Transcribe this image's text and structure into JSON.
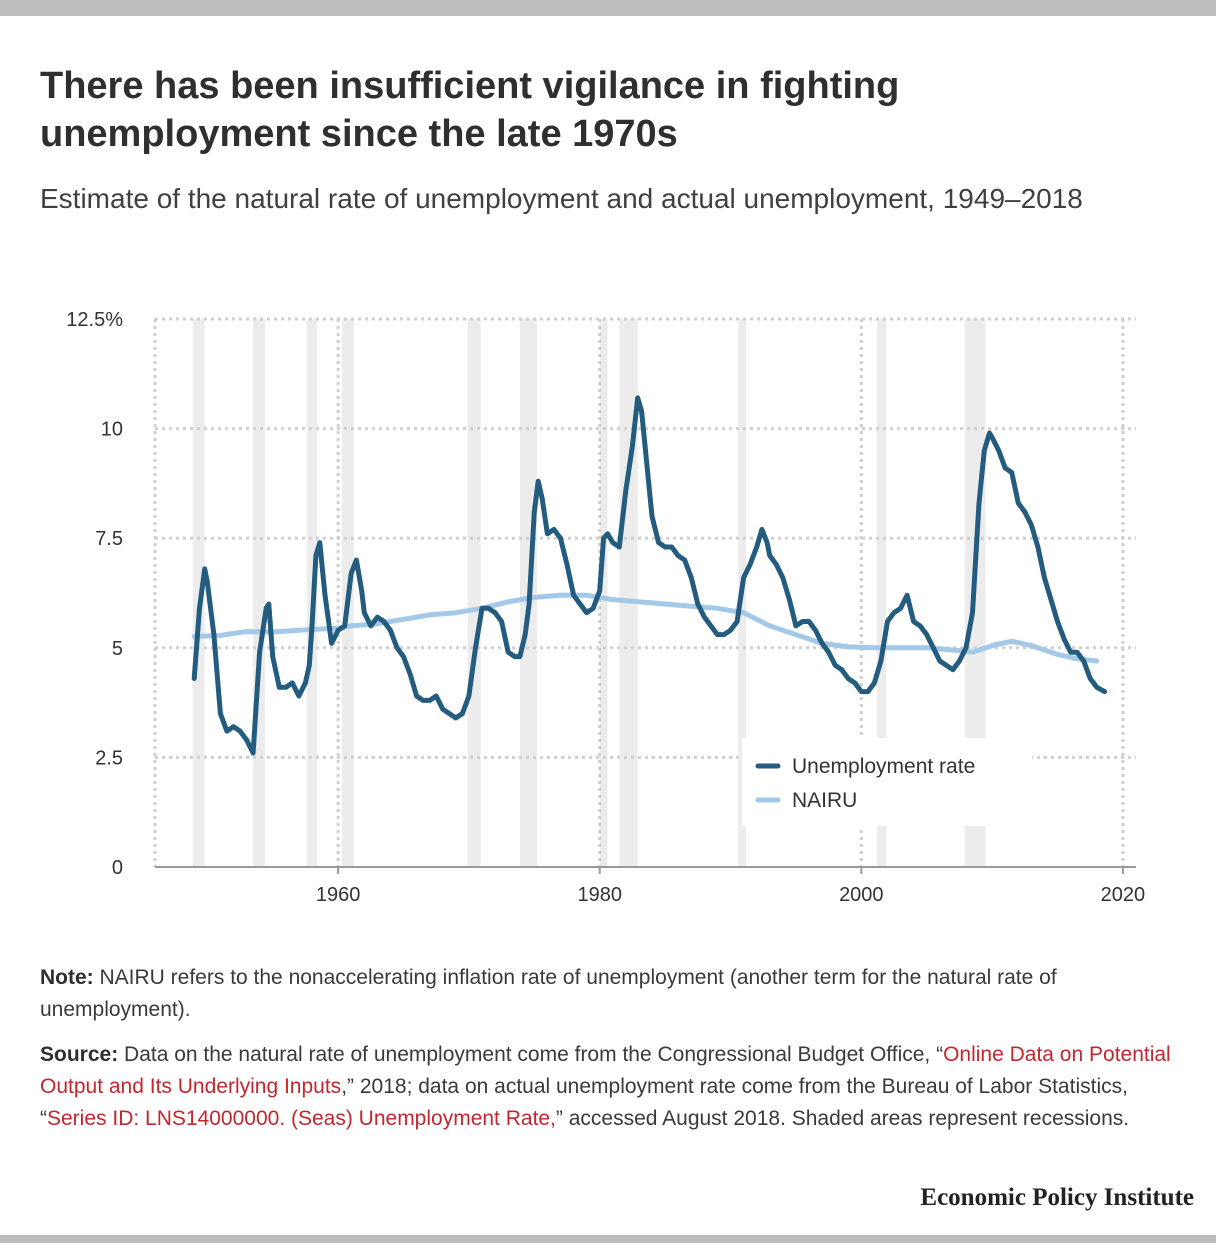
{
  "header": {
    "title": "There has been insufficient vigilance in fighting unemployment since the late 1970s",
    "subtitle": "Estimate of the natural rate of unemployment and actual unemployment, 1949–2018"
  },
  "footer": {
    "note_label": "Note:",
    "note_text": " NAIRU refers to the nonaccelerating inflation rate of unemployment (another term for the natural rate of unemployment).",
    "source_label": "Source:",
    "source_pre": " Data on the natural rate of unemployment come from the Congressional Budget Office, “",
    "source_link1": "Online Data on Potential Output and Its Underlying Inputs",
    "source_mid": ",” 2018; data on actual unemployment rate come from the Bureau of Labor Statistics, “",
    "source_link2": "Series ID: LNS14000000. (Seas) Unemployment Rate,",
    "source_post": "” accessed August 2018. Shaded areas represent recessions.",
    "brand": "Economic Policy Institute"
  },
  "colors": {
    "unemployment": "#245c80",
    "nairu": "#a3c8e8",
    "recession": "#ececec",
    "grid": "#d0d0d0",
    "axis": "#9a9a9a",
    "link": "#c1272d"
  },
  "chart_data": {
    "type": "line",
    "x_axis": {
      "range": [
        1946,
        2021
      ],
      "ticks": [
        1960,
        1980,
        2000,
        2020
      ],
      "tick_labels": [
        "1960",
        "1980",
        "2000",
        "2020"
      ]
    },
    "y_axis": {
      "range": [
        0,
        12.5
      ],
      "ticks": [
        0,
        2.5,
        5,
        7.5,
        10,
        12.5
      ],
      "tick_labels": [
        "0",
        "2.5",
        "5",
        "7.5",
        "10",
        "12.5%"
      ]
    },
    "grid": true,
    "legend": {
      "placement": "bottom-right",
      "entries": [
        "Unemployment rate",
        "NAIRU"
      ]
    },
    "recessions": [
      [
        1948.9,
        1949.8
      ],
      [
        1953.5,
        1954.4
      ],
      [
        1957.6,
        1958.4
      ],
      [
        1960.3,
        1961.2
      ],
      [
        1969.9,
        1970.9
      ],
      [
        1973.9,
        1975.2
      ],
      [
        1980.0,
        1980.6
      ],
      [
        1981.5,
        1982.9
      ],
      [
        1990.6,
        1991.2
      ],
      [
        2001.2,
        2001.9
      ],
      [
        2007.9,
        2009.5
      ]
    ],
    "series": [
      {
        "name": "Unemployment rate",
        "points": [
          [
            1949.0,
            4.3
          ],
          [
            1949.4,
            5.9
          ],
          [
            1949.8,
            6.8
          ],
          [
            1950.0,
            6.5
          ],
          [
            1950.5,
            5.3
          ],
          [
            1951.0,
            3.5
          ],
          [
            1951.5,
            3.1
          ],
          [
            1952.0,
            3.2
          ],
          [
            1952.5,
            3.1
          ],
          [
            1953.0,
            2.9
          ],
          [
            1953.5,
            2.6
          ],
          [
            1954.0,
            4.9
          ],
          [
            1954.5,
            5.9
          ],
          [
            1954.7,
            6.0
          ],
          [
            1955.0,
            4.8
          ],
          [
            1955.5,
            4.1
          ],
          [
            1956.0,
            4.1
          ],
          [
            1956.5,
            4.2
          ],
          [
            1957.0,
            3.9
          ],
          [
            1957.5,
            4.2
          ],
          [
            1957.8,
            4.6
          ],
          [
            1958.0,
            5.5
          ],
          [
            1958.3,
            7.1
          ],
          [
            1958.6,
            7.4
          ],
          [
            1959.0,
            6.2
          ],
          [
            1959.5,
            5.1
          ],
          [
            1960.0,
            5.4
          ],
          [
            1960.5,
            5.5
          ],
          [
            1961.0,
            6.7
          ],
          [
            1961.4,
            7.0
          ],
          [
            1961.8,
            6.3
          ],
          [
            1962.0,
            5.8
          ],
          [
            1962.5,
            5.5
          ],
          [
            1963.0,
            5.7
          ],
          [
            1963.5,
            5.6
          ],
          [
            1964.0,
            5.4
          ],
          [
            1964.5,
            5.0
          ],
          [
            1965.0,
            4.8
          ],
          [
            1965.5,
            4.4
          ],
          [
            1966.0,
            3.9
          ],
          [
            1966.5,
            3.8
          ],
          [
            1967.0,
            3.8
          ],
          [
            1967.5,
            3.9
          ],
          [
            1968.0,
            3.6
          ],
          [
            1968.5,
            3.5
          ],
          [
            1969.0,
            3.4
          ],
          [
            1969.5,
            3.5
          ],
          [
            1970.0,
            3.9
          ],
          [
            1970.5,
            5.0
          ],
          [
            1971.0,
            5.9
          ],
          [
            1971.5,
            5.9
          ],
          [
            1972.0,
            5.8
          ],
          [
            1972.5,
            5.6
          ],
          [
            1973.0,
            4.9
          ],
          [
            1973.5,
            4.8
          ],
          [
            1973.9,
            4.8
          ],
          [
            1974.3,
            5.3
          ],
          [
            1974.6,
            6.0
          ],
          [
            1975.0,
            8.1
          ],
          [
            1975.3,
            8.8
          ],
          [
            1975.6,
            8.4
          ],
          [
            1976.0,
            7.6
          ],
          [
            1976.5,
            7.7
          ],
          [
            1977.0,
            7.5
          ],
          [
            1977.5,
            6.9
          ],
          [
            1978.0,
            6.2
          ],
          [
            1978.5,
            6.0
          ],
          [
            1979.0,
            5.8
          ],
          [
            1979.5,
            5.9
          ],
          [
            1980.0,
            6.3
          ],
          [
            1980.3,
            7.5
          ],
          [
            1980.6,
            7.6
          ],
          [
            1981.0,
            7.4
          ],
          [
            1981.5,
            7.3
          ],
          [
            1982.0,
            8.6
          ],
          [
            1982.5,
            9.6
          ],
          [
            1982.9,
            10.7
          ],
          [
            1983.2,
            10.4
          ],
          [
            1983.5,
            9.5
          ],
          [
            1984.0,
            8.0
          ],
          [
            1984.5,
            7.4
          ],
          [
            1985.0,
            7.3
          ],
          [
            1985.5,
            7.3
          ],
          [
            1986.0,
            7.1
          ],
          [
            1986.5,
            7.0
          ],
          [
            1987.0,
            6.6
          ],
          [
            1987.5,
            6.0
          ],
          [
            1988.0,
            5.7
          ],
          [
            1988.5,
            5.5
          ],
          [
            1989.0,
            5.3
          ],
          [
            1989.5,
            5.3
          ],
          [
            1990.0,
            5.4
          ],
          [
            1990.5,
            5.6
          ],
          [
            1991.0,
            6.6
          ],
          [
            1991.5,
            6.9
          ],
          [
            1992.0,
            7.3
          ],
          [
            1992.4,
            7.7
          ],
          [
            1992.8,
            7.4
          ],
          [
            1993.0,
            7.1
          ],
          [
            1993.5,
            6.9
          ],
          [
            1994.0,
            6.6
          ],
          [
            1994.5,
            6.1
          ],
          [
            1995.0,
            5.5
          ],
          [
            1995.5,
            5.6
          ],
          [
            1996.0,
            5.6
          ],
          [
            1996.5,
            5.4
          ],
          [
            1997.0,
            5.1
          ],
          [
            1997.5,
            4.9
          ],
          [
            1998.0,
            4.6
          ],
          [
            1998.5,
            4.5
          ],
          [
            1999.0,
            4.3
          ],
          [
            1999.5,
            4.2
          ],
          [
            2000.0,
            4.0
          ],
          [
            2000.5,
            4.0
          ],
          [
            2001.0,
            4.2
          ],
          [
            2001.5,
            4.7
          ],
          [
            2002.0,
            5.6
          ],
          [
            2002.5,
            5.8
          ],
          [
            2003.0,
            5.9
          ],
          [
            2003.5,
            6.2
          ],
          [
            2004.0,
            5.6
          ],
          [
            2004.5,
            5.5
          ],
          [
            2005.0,
            5.3
          ],
          [
            2005.5,
            5.0
          ],
          [
            2006.0,
            4.7
          ],
          [
            2006.5,
            4.6
          ],
          [
            2007.0,
            4.5
          ],
          [
            2007.5,
            4.7
          ],
          [
            2008.0,
            5.0
          ],
          [
            2008.5,
            5.8
          ],
          [
            2009.0,
            8.3
          ],
          [
            2009.4,
            9.5
          ],
          [
            2009.8,
            9.9
          ],
          [
            2010.0,
            9.8
          ],
          [
            2010.5,
            9.5
          ],
          [
            2011.0,
            9.1
          ],
          [
            2011.5,
            9.0
          ],
          [
            2012.0,
            8.3
          ],
          [
            2012.5,
            8.1
          ],
          [
            2013.0,
            7.8
          ],
          [
            2013.5,
            7.3
          ],
          [
            2014.0,
            6.6
          ],
          [
            2014.5,
            6.1
          ],
          [
            2015.0,
            5.6
          ],
          [
            2015.5,
            5.2
          ],
          [
            2016.0,
            4.9
          ],
          [
            2016.5,
            4.9
          ],
          [
            2017.0,
            4.7
          ],
          [
            2017.5,
            4.3
          ],
          [
            2018.0,
            4.1
          ],
          [
            2018.6,
            4.0
          ]
        ]
      },
      {
        "name": "NAIRU",
        "points": [
          [
            1949.0,
            5.26
          ],
          [
            1950.0,
            5.27
          ],
          [
            1951.0,
            5.28
          ],
          [
            1952.0,
            5.33
          ],
          [
            1953.0,
            5.37
          ],
          [
            1955.0,
            5.36
          ],
          [
            1957.0,
            5.4
          ],
          [
            1960.0,
            5.45
          ],
          [
            1961.0,
            5.5
          ],
          [
            1963.0,
            5.55
          ],
          [
            1965.0,
            5.65
          ],
          [
            1967.0,
            5.75
          ],
          [
            1969.0,
            5.8
          ],
          [
            1971.0,
            5.9
          ],
          [
            1973.0,
            6.05
          ],
          [
            1975.0,
            6.15
          ],
          [
            1977.0,
            6.2
          ],
          [
            1979.0,
            6.2
          ],
          [
            1981.0,
            6.1
          ],
          [
            1983.0,
            6.05
          ],
          [
            1985.0,
            6.0
          ],
          [
            1987.0,
            5.95
          ],
          [
            1989.0,
            5.9
          ],
          [
            1991.0,
            5.8
          ],
          [
            1993.0,
            5.5
          ],
          [
            1995.0,
            5.3
          ],
          [
            1997.0,
            5.1
          ],
          [
            1999.0,
            5.02
          ],
          [
            2001.0,
            5.0
          ],
          [
            2003.0,
            5.0
          ],
          [
            2005.0,
            5.0
          ],
          [
            2007.0,
            4.95
          ],
          [
            2008.5,
            4.9
          ],
          [
            2010.0,
            5.05
          ],
          [
            2011.5,
            5.15
          ],
          [
            2013.0,
            5.05
          ],
          [
            2015.0,
            4.85
          ],
          [
            2016.5,
            4.75
          ],
          [
            2018.0,
            4.7
          ]
        ]
      }
    ]
  }
}
